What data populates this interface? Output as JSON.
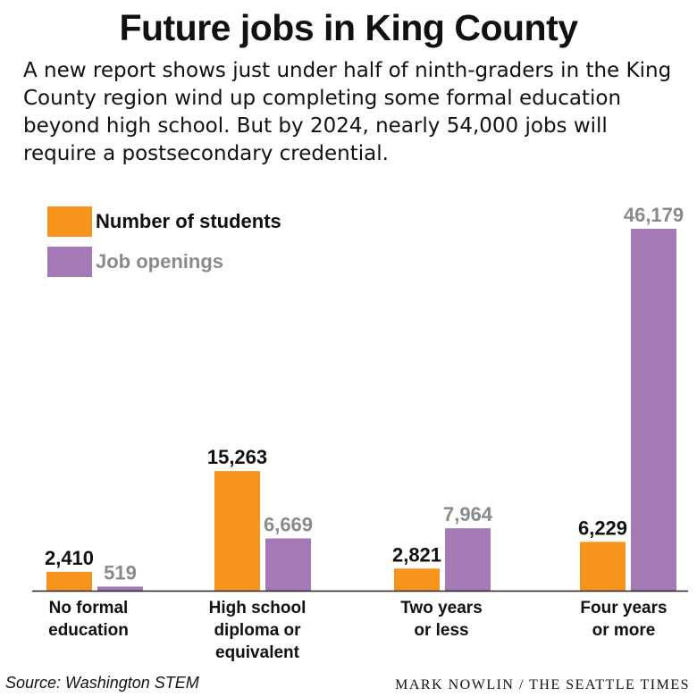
{
  "title": "Future jobs in King County",
  "subtitle": "A new report shows just under half of ninth-graders in the King County region wind up completing some formal education beyond high school. But by 2024, nearly 54,000 jobs will require a postsecondary credential.",
  "source": "Source: Washington STEM",
  "credit": "MARK NOWLIN / THE SEATTLE TIMES",
  "colors": {
    "students": "#f7941d",
    "jobs": "#a479b6",
    "students_label": "#111111",
    "jobs_label": "#8a8a8a",
    "axis": "#222222"
  },
  "chart_data": {
    "type": "bar",
    "categories": [
      "No formal education",
      "High school diploma or equivalent",
      "Two years or less",
      "Four years or more"
    ],
    "category_lines": [
      [
        "No formal",
        "education"
      ],
      [
        "High school",
        "diploma or",
        "equivalent"
      ],
      [
        "Two years",
        "or less"
      ],
      [
        "Four years",
        "or more"
      ]
    ],
    "series": [
      {
        "name": "Number of students",
        "values": [
          2410,
          15263,
          2821,
          6229
        ],
        "labels": [
          "2,410",
          "15,263",
          "2,821",
          "6,229"
        ]
      },
      {
        "name": "Job openings",
        "values": [
          519,
          6669,
          7964,
          46179
        ],
        "labels": [
          "519",
          "6,669",
          "7,964",
          "46,179"
        ]
      }
    ],
    "ylim": [
      0,
      46179
    ],
    "grid": false,
    "legend_position": "top-left"
  }
}
